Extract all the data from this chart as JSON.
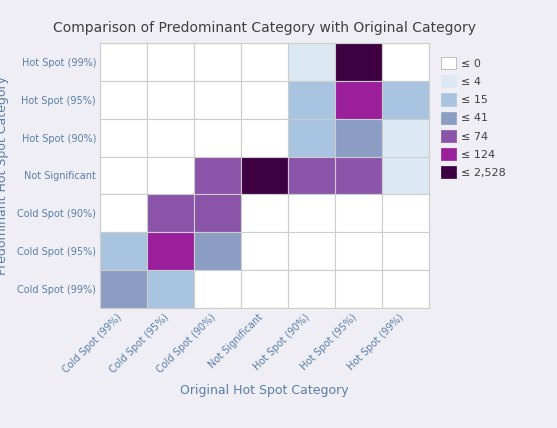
{
  "title": "Comparison of Predominant Category with Original Category",
  "xlabel": "Original Hot Spot Category",
  "ylabel": "Predominant Hot Spot Category",
  "categories": [
    "Cold Spot (99%)",
    "Cold Spot (95%)",
    "Cold Spot (90%)",
    "Not Significant",
    "Hot Spot (90%)",
    "Hot Spot (95%)",
    "Hot Spot (99%)"
  ],
  "matrix_display": [
    [
      0,
      0,
      0,
      0,
      4,
      2528,
      0
    ],
    [
      0,
      0,
      0,
      0,
      15,
      124,
      15
    ],
    [
      0,
      0,
      0,
      0,
      15,
      41,
      4
    ],
    [
      0,
      0,
      74,
      2528,
      74,
      74,
      4
    ],
    [
      0,
      74,
      74,
      0,
      0,
      0,
      0
    ],
    [
      15,
      124,
      41,
      0,
      0,
      0,
      0
    ],
    [
      41,
      15,
      0,
      0,
      0,
      0,
      0
    ]
  ],
  "legend_labels": [
    "≤ 0",
    "≤ 4",
    "≤ 15",
    "≤ 41",
    "≤ 74",
    "≤ 124",
    "≤ 2,528"
  ],
  "legend_colors": [
    "#ffffff",
    "#dce9f5",
    "#a8c4e0",
    "#8b9dc3",
    "#8b54a8",
    "#9b1f9b",
    "#3d0040"
  ],
  "bg_color": "#eeeef4",
  "cell_bg": "#ffffff",
  "grid_color": "#cccccc",
  "title_color": "#404040",
  "axis_label_color": "#5a7fa8",
  "tick_label_color": "#5a7fa8"
}
